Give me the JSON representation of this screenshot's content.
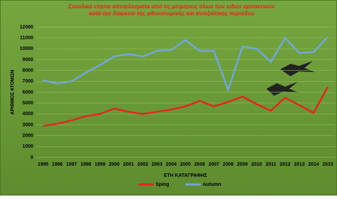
{
  "chart_data": {
    "type": "line",
    "title": [
      "Συνολικά ετήσια αποτελέσματα από τις μετρήσεις όλων των ειδών αρπακτικών",
      "κατά την διάρκεια της φθινοπωρινής και ανοιξιάτικης περιόδου"
    ],
    "x_label": "ΕΤΗ ΚΑΤΑΓΡΑΦΗΣ",
    "y_label": "ΑΡΙΘΜΟΣ ΑΤΟΜΩΝ",
    "categories": [
      "1995",
      "1996",
      "1997",
      "1998",
      "1999",
      "2000",
      "2001",
      "2002",
      "2003",
      "2004",
      "2005",
      "2006",
      "2007",
      "2008",
      "2009",
      "2010",
      "2011",
      "2012",
      "2013",
      "2014",
      "2015"
    ],
    "series": [
      {
        "name": "Sping",
        "color": "#e8231b",
        "values": [
          2900,
          3100,
          3400,
          3800,
          4000,
          4500,
          4200,
          4000,
          4200,
          4400,
          4700,
          5200,
          4700,
          5100,
          5600,
          4900,
          4300,
          5500,
          4800,
          4100,
          6500
        ]
      },
      {
        "name": "Autumn",
        "color": "#6fa8dc",
        "values": [
          7100,
          6800,
          7000,
          7800,
          8500,
          9300,
          9500,
          9300,
          9800,
          9900,
          10800,
          9800,
          9800,
          6200,
          10200,
          10000,
          8800,
          11000,
          9600,
          9700,
          11100
        ]
      }
    ],
    "ylim": [
      0,
      12000
    ],
    "yticks": [
      0,
      1000,
      2000,
      3000,
      4000,
      5000,
      6000,
      7000,
      8000,
      9000,
      10000,
      11000,
      12000
    ],
    "grid": true,
    "legend": "bottom"
  }
}
